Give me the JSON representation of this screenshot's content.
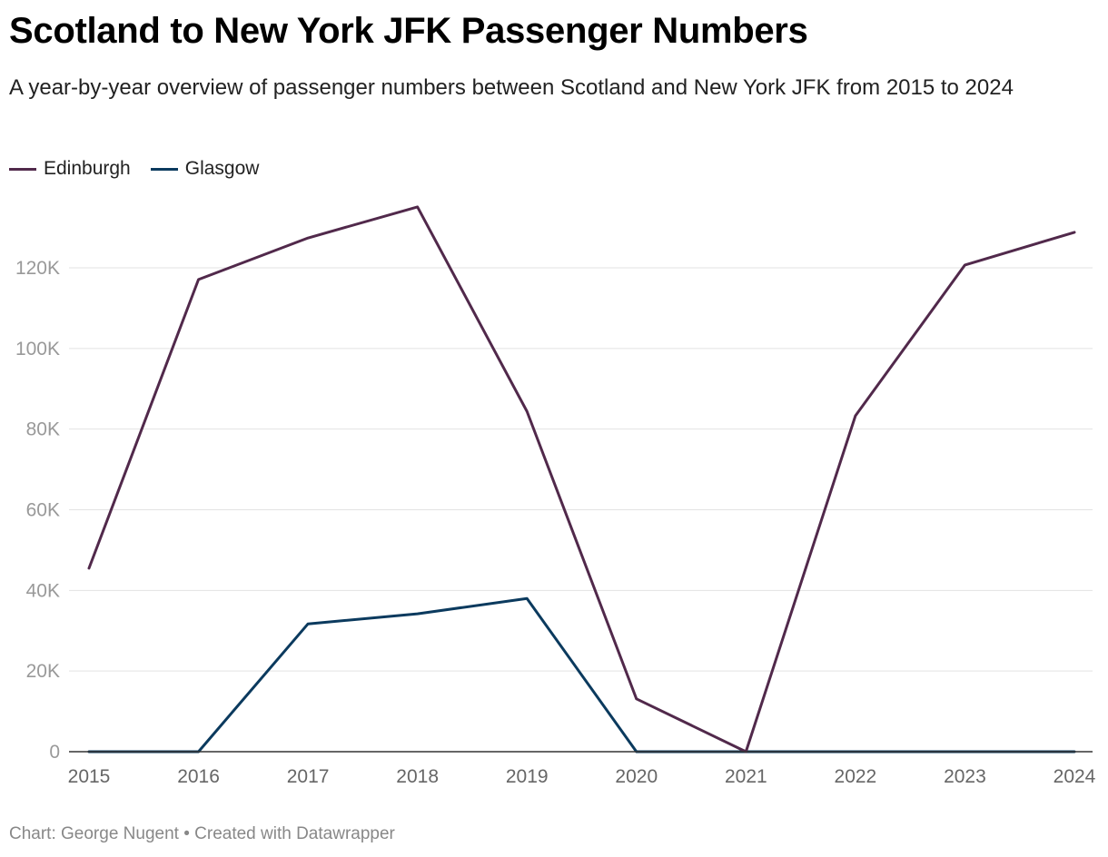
{
  "chart_data": {
    "type": "line",
    "title": "Scotland to New York JFK Passenger Numbers",
    "subtitle": "A year-by-year overview of passenger numbers between Scotland and New York JFK from 2015 to 2024",
    "x": [
      "2015",
      "2016",
      "2017",
      "2018",
      "2019",
      "2020",
      "2021",
      "2022",
      "2023",
      "2024"
    ],
    "series": [
      {
        "name": "Edinburgh",
        "color": "#51294b",
        "values": [
          45500,
          117100,
          127400,
          135100,
          84400,
          13100,
          0,
          83300,
          120700,
          128800
        ]
      },
      {
        "name": "Glasgow",
        "color": "#0b3a5e",
        "values": [
          0,
          0,
          31700,
          34200,
          38000,
          0,
          0,
          0,
          0,
          0
        ]
      }
    ],
    "ylim": [
      0,
      140000
    ],
    "yticks": [
      0,
      20000,
      40000,
      60000,
      80000,
      100000,
      120000
    ],
    "ytick_labels": [
      "0",
      "20K",
      "40K",
      "60K",
      "80K",
      "100K",
      "120K"
    ],
    "grid": true,
    "legend": "top-left",
    "xlabel": "",
    "ylabel": ""
  },
  "footer": "Chart: George Nugent • Created with Datawrapper"
}
